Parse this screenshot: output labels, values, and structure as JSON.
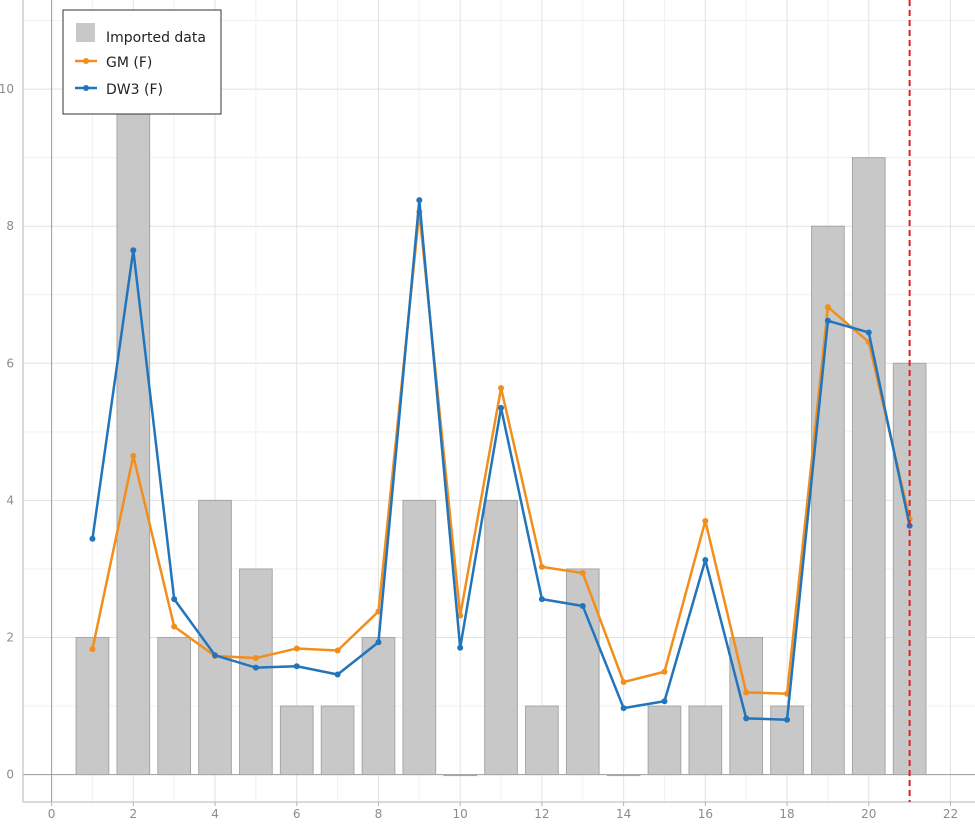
{
  "chart_data": {
    "type": "bar",
    "title": "",
    "xlabel": "",
    "ylabel": "",
    "xlim": [
      -0.7,
      22.6
    ],
    "ylim": [
      -0.4,
      11.3
    ],
    "x_ticks": [
      0,
      2,
      4,
      6,
      8,
      10,
      12,
      14,
      16,
      18,
      20,
      22
    ],
    "y_ticks": [
      0,
      2,
      4,
      6,
      8,
      10
    ],
    "grid": true,
    "legend_position": "top-left",
    "bars": {
      "name": "Imported data",
      "color": "#c8c8c8",
      "x": [
        1,
        2,
        3,
        4,
        5,
        6,
        7,
        8,
        9,
        10,
        11,
        12,
        13,
        14,
        15,
        16,
        17,
        18,
        19,
        20,
        21
      ],
      "values": [
        2,
        10,
        2,
        4,
        3,
        1,
        1,
        2,
        4,
        0,
        4,
        1,
        3,
        0,
        1,
        1,
        2,
        1,
        8,
        9,
        6
      ]
    },
    "series": [
      {
        "name": "GM (F)",
        "color": "#f28e1c",
        "x": [
          1,
          2,
          3,
          4,
          5,
          6,
          7,
          8,
          9,
          10,
          11,
          12,
          13,
          14,
          15,
          16,
          17,
          18,
          19,
          20,
          21
        ],
        "values": [
          1.83,
          4.65,
          2.16,
          1.73,
          1.7,
          1.84,
          1.81,
          2.38,
          8.21,
          2.32,
          5.64,
          3.03,
          2.94,
          1.35,
          1.5,
          3.7,
          1.2,
          1.18,
          6.82,
          6.31,
          3.73
        ]
      },
      {
        "name": "DW3 (F)",
        "color": "#2275bb",
        "x": [
          1,
          2,
          3,
          4,
          5,
          6,
          7,
          8,
          9,
          10,
          11,
          12,
          13,
          14,
          15,
          16,
          17,
          18,
          19,
          20,
          21
        ],
        "values": [
          3.44,
          7.65,
          2.56,
          1.74,
          1.56,
          1.58,
          1.46,
          1.93,
          8.38,
          1.85,
          5.35,
          2.56,
          2.46,
          0.97,
          1.07,
          3.13,
          0.82,
          0.8,
          6.62,
          6.45,
          3.63
        ]
      }
    ],
    "marker_line": {
      "x": 21,
      "color": "#e02020"
    }
  }
}
